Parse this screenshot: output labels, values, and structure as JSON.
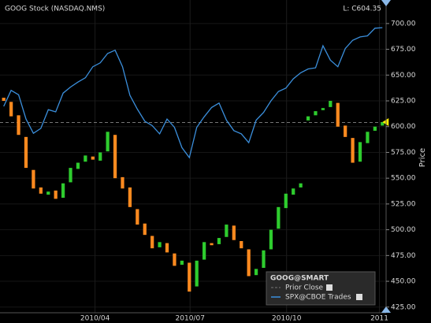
{
  "chart_data": {
    "type": "candlestick",
    "title": "GOOG Stock (NASDAQ.NMS)",
    "last_label": "L: C604.35",
    "y_label": "Price",
    "x": [
      0,
      1,
      2,
      3,
      4,
      5,
      6,
      7,
      8,
      9,
      10,
      11,
      12,
      13,
      14,
      15,
      16,
      17,
      18,
      19,
      20,
      21,
      22,
      23,
      24,
      25,
      26,
      27,
      28,
      29,
      30,
      31,
      32,
      33,
      34,
      35,
      36,
      37,
      38,
      39,
      40,
      41,
      42,
      43,
      44,
      45,
      46,
      47,
      48,
      49,
      50,
      51
    ],
    "xlim": [
      -0.5,
      51.5
    ],
    "xticks": [
      {
        "value": 12.3,
        "label": "2010/04"
      },
      {
        "value": 25.1,
        "label": "2010/07"
      },
      {
        "value": 38.1,
        "label": "2010/10"
      },
      {
        "value": 50.6,
        "label": "2011"
      }
    ],
    "ylim": [
      421,
      719
    ],
    "yticks": [
      {
        "value": 425,
        "label": "425.00"
      },
      {
        "value": 450,
        "label": "450.00"
      },
      {
        "value": 475,
        "label": "475.00"
      },
      {
        "value": 500,
        "label": "500.00"
      },
      {
        "value": 525,
        "label": "525.00"
      },
      {
        "value": 550,
        "label": "550.00"
      },
      {
        "value": 575,
        "label": "575.00"
      },
      {
        "value": 600,
        "label": "600.00"
      },
      {
        "value": 625,
        "label": "625.00"
      },
      {
        "value": 650,
        "label": "650.00"
      },
      {
        "value": 675,
        "label": "675.00"
      },
      {
        "value": 700,
        "label": "700.00"
      }
    ],
    "y2lim": [
      743,
      1301
    ],
    "grid": true,
    "series": [
      {
        "name": "GOOG@SMART",
        "up_color": "#2ecc2e",
        "down_color": "#ff8a1f",
        "open": [
          628,
          624,
          611,
          590,
          558,
          541,
          534,
          538,
          531,
          546,
          559,
          566,
          571,
          567,
          576,
          592,
          551,
          541,
          520,
          506,
          494,
          483,
          487,
          477,
          466,
          468,
          445,
          471,
          487,
          486,
          493,
          504,
          489,
          481,
          456,
          463,
          481,
          501,
          521,
          534,
          541,
          606,
          611,
          616,
          619,
          623,
          601,
          589,
          566,
          584,
          596,
          601
        ],
        "close": [
          625,
          610,
          592,
          560,
          540,
          535,
          537,
          530,
          545,
          560,
          565,
          572,
          568,
          575,
          595,
          550,
          540,
          522,
          505,
          495,
          482,
          488,
          478,
          465,
          470,
          440,
          470,
          488,
          485,
          492,
          505,
          490,
          482,
          455,
          462,
          480,
          500,
          522,
          535,
          540,
          545,
          610,
          615,
          618,
          625,
          600,
          590,
          565,
          585,
          595,
          600,
          604.35
        ]
      },
      {
        "name": "SPX@CBOE Trades",
        "color": "#3b8fdc",
        "axis": "y2",
        "values": [
          1115,
          1144,
          1136,
          1092,
          1066,
          1075,
          1109,
          1105,
          1139,
          1150,
          1159,
          1167,
          1187,
          1194,
          1211,
          1217,
          1187,
          1135,
          1110,
          1088,
          1080,
          1065,
          1092,
          1077,
          1040,
          1022,
          1077,
          1096,
          1113,
          1121,
          1090,
          1071,
          1065,
          1049,
          1090,
          1104,
          1125,
          1142,
          1148,
          1165,
          1176,
          1183,
          1185,
          1225,
          1199,
          1187,
          1220,
          1235,
          1241,
          1243,
          1257,
          1258
        ]
      }
    ],
    "prior_close": {
      "name": "Prior Close",
      "value": 604,
      "color": "#777777"
    },
    "last_marker_color": "#ffee00"
  }
}
